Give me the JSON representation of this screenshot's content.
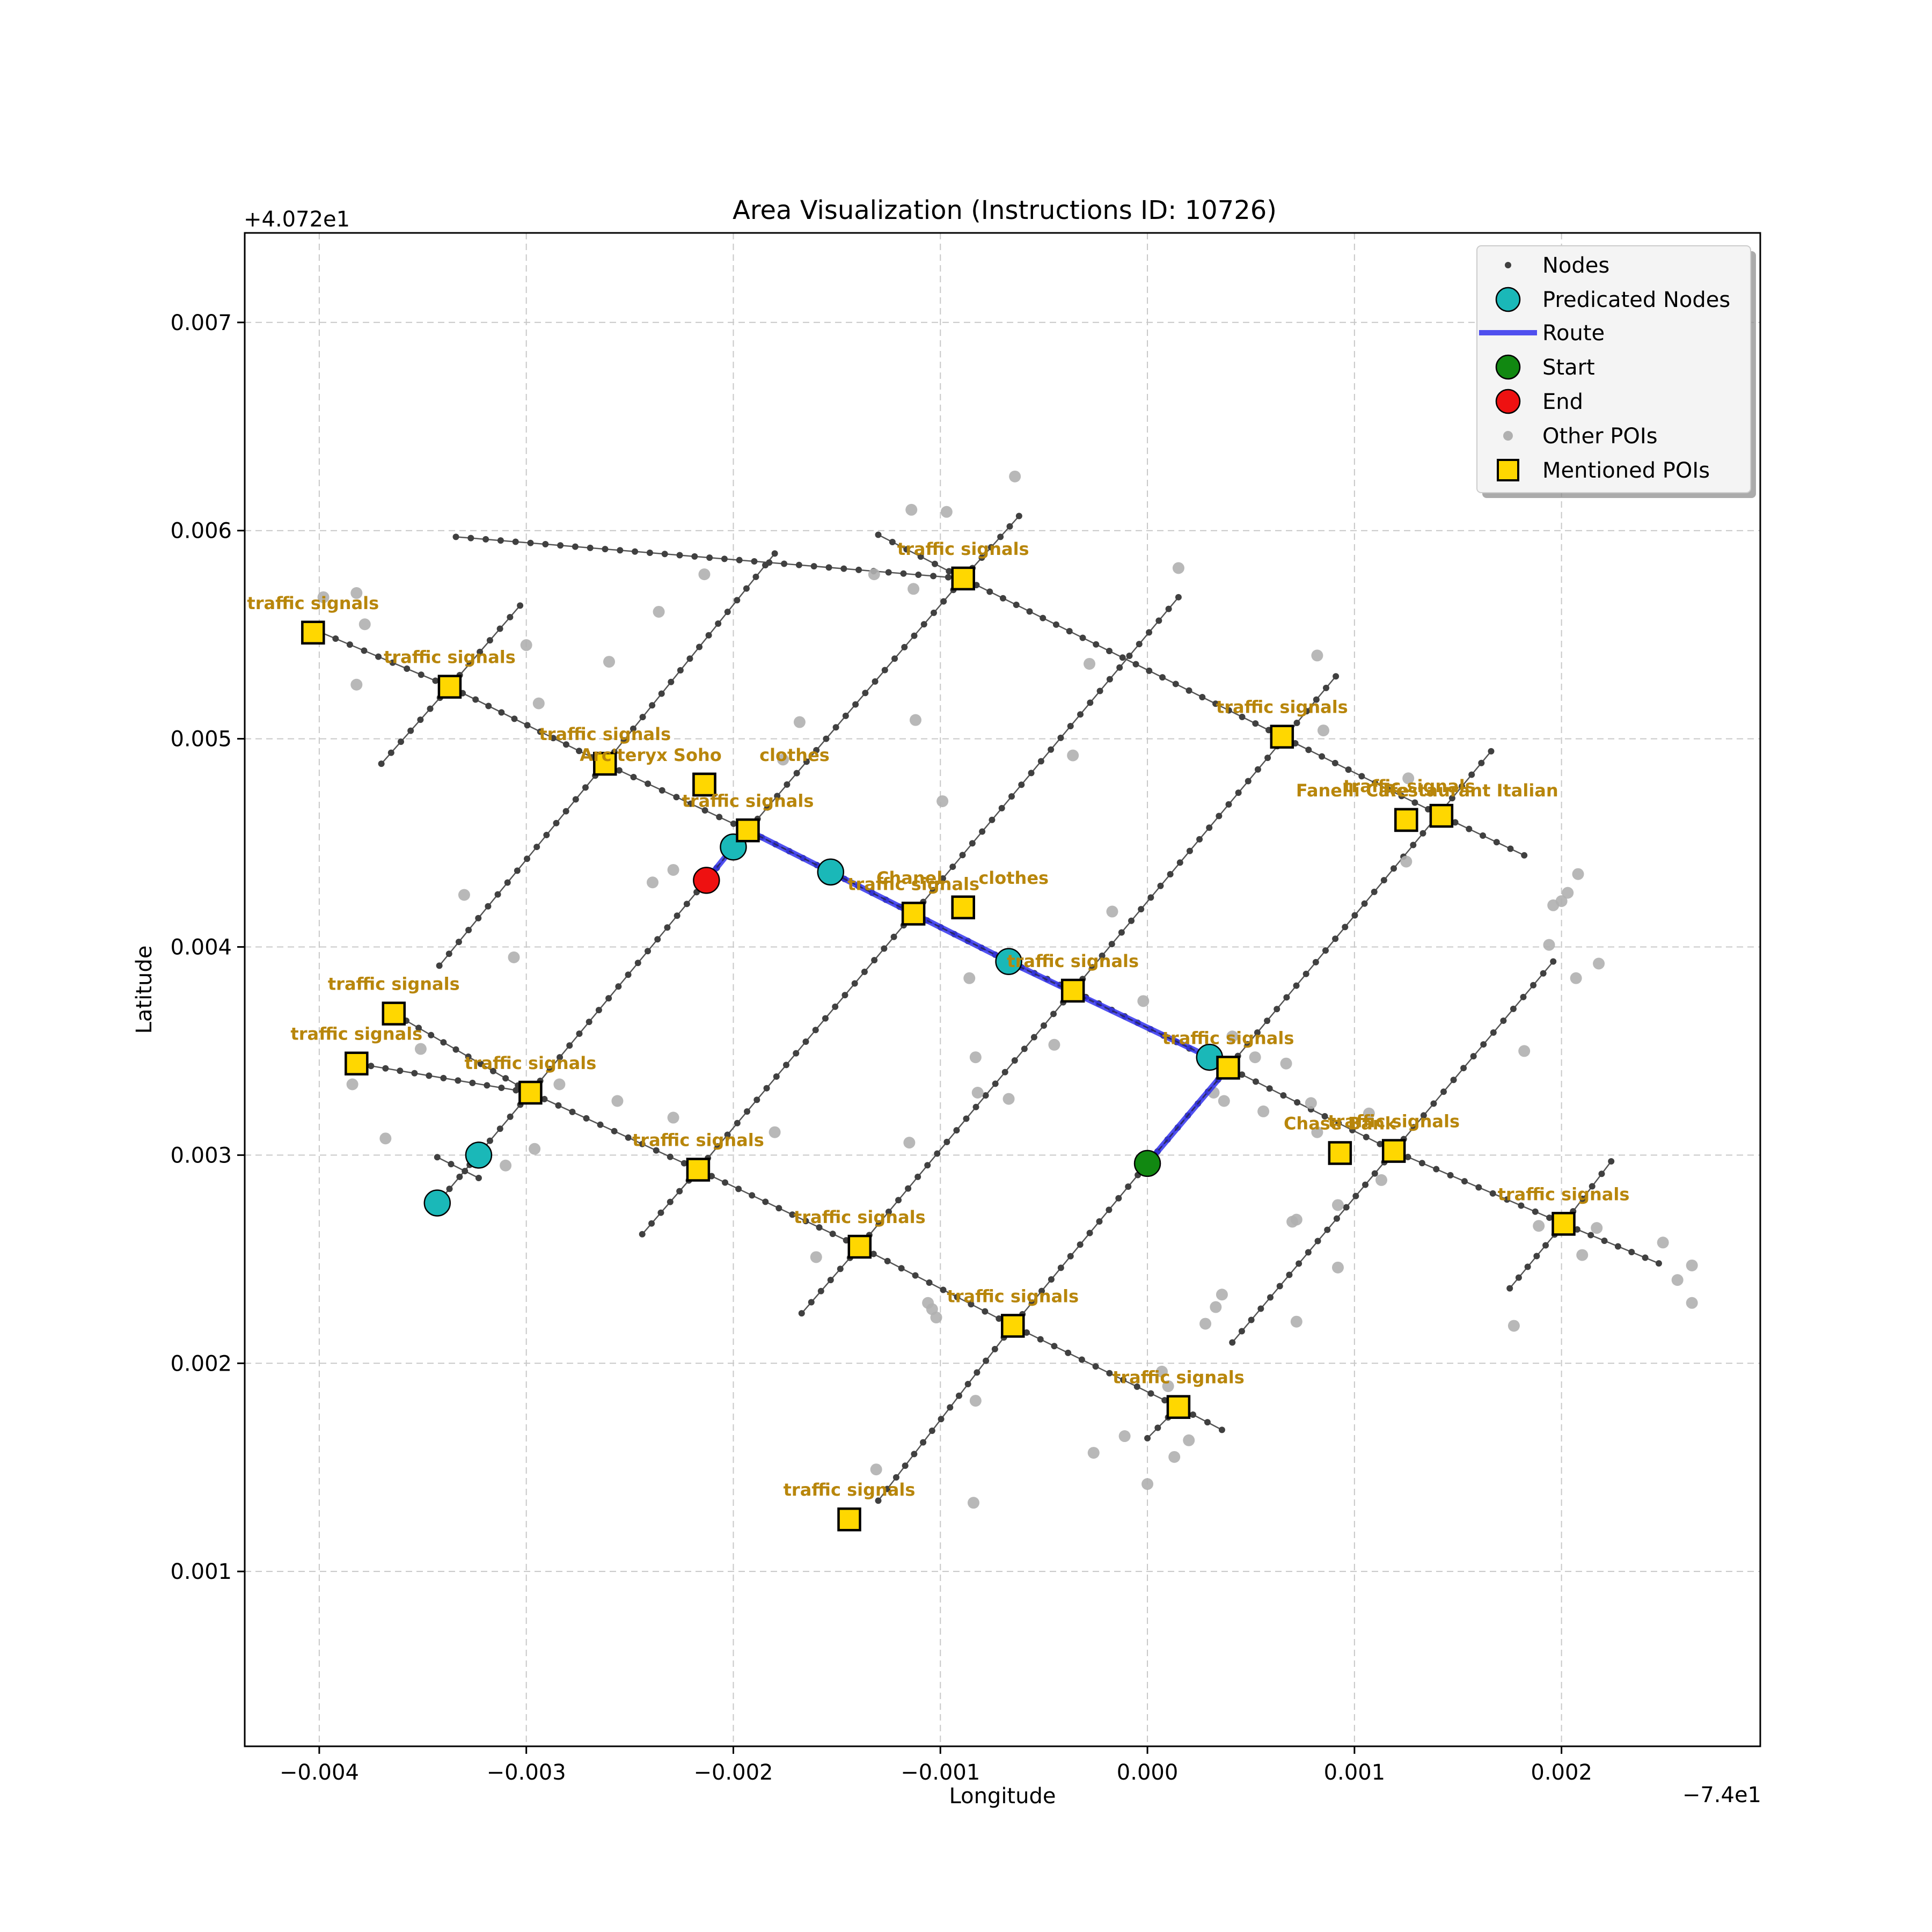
{
  "chart_data": {
    "type": "scatter",
    "title": "Area Visualization (Instructions ID: 10726)",
    "xlabel": "Longitude",
    "ylabel": "Latitude",
    "x_offset_label": "−7.4e1",
    "y_offset_label": "+4.072e1",
    "xlim": [
      -0.00436,
      0.00296
    ],
    "ylim": [
      0.00016,
      0.00743
    ],
    "x_ticks": [
      -0.004,
      -0.003,
      -0.002,
      -0.001,
      0.0,
      0.001,
      0.002
    ],
    "x_tick_labels": [
      "−0.004",
      "−0.003",
      "−0.002",
      "−0.001",
      "0.000",
      "0.001",
      "0.002"
    ],
    "y_ticks": [
      0.001,
      0.002,
      0.003,
      0.004,
      0.005,
      0.006,
      0.007
    ],
    "y_tick_labels": [
      "0.001",
      "0.002",
      "0.003",
      "0.004",
      "0.005",
      "0.006",
      "0.007"
    ],
    "grid": true,
    "legend": {
      "placement": "upper right",
      "entries": [
        "Nodes",
        "Predicated Nodes",
        "Route",
        "Start",
        "End",
        "Other POIs",
        "Mentioned POIs"
      ]
    },
    "colors": {
      "nodes": "#404040",
      "street": "#555555",
      "predicated": "#1ab8b8",
      "route": "#3333ee",
      "start": "#118811",
      "end": "#ee1111",
      "other_poi": "#b0b0b0",
      "mentioned_poi": "#ffd700",
      "poi_label": "#b8860b",
      "grid": "#c8c8c8"
    },
    "streets": [
      [
        [
          -0.00399,
          0.00551
        ],
        [
          -0.00337,
          0.00525
        ],
        [
          -0.00262,
          0.00488
        ],
        [
          -0.00193,
          0.00456
        ],
        [
          -0.00113,
          0.00416
        ],
        [
          -0.00067,
          0.00393
        ],
        [
          -0.00036,
          0.00379
        ],
        [
          0.00039,
          0.00342
        ],
        [
          0.00119,
          0.00302
        ],
        [
          0.00201,
          0.00267
        ],
        [
          0.00247,
          0.00248
        ]
      ],
      [
        [
          -0.00334,
          0.00597
        ],
        [
          -0.00089,
          0.00577
        ],
        [
          0.00065,
          0.00501
        ],
        [
          0.00142,
          0.00463
        ],
        [
          0.00182,
          0.00444
        ]
      ],
      [
        [
          -0.00364,
          0.00368
        ],
        [
          -0.00298,
          0.0033
        ],
        [
          -0.00217,
          0.00293
        ],
        [
          -0.00139,
          0.00256
        ],
        [
          -0.00065,
          0.00218
        ],
        [
          0.00015,
          0.00179
        ],
        [
          0.00036,
          0.00168
        ]
      ],
      [
        [
          -0.00382,
          0.00344
        ],
        [
          -0.00298,
          0.0033
        ]
      ],
      [
        [
          -0.0037,
          0.00488
        ],
        [
          -0.00337,
          0.00525
        ],
        [
          -0.00303,
          0.00564
        ]
      ],
      [
        [
          -0.00342,
          0.00391
        ],
        [
          -0.00262,
          0.00488
        ],
        [
          -0.0018,
          0.00589
        ]
      ],
      [
        [
          -0.00342,
          0.00278
        ],
        [
          -0.00298,
          0.0033
        ],
        [
          -0.00213,
          0.00432
        ],
        [
          -0.00193,
          0.00456
        ],
        [
          -0.00089,
          0.00577
        ],
        [
          -0.00062,
          0.00607
        ]
      ],
      [
        [
          -0.00244,
          0.00262
        ],
        [
          -0.00217,
          0.00293
        ],
        [
          -0.00113,
          0.00416
        ],
        [
          0.00015,
          0.00568
        ]
      ],
      [
        [
          -0.00167,
          0.00224
        ],
        [
          -0.00139,
          0.00256
        ],
        [
          -0.00036,
          0.00379
        ],
        [
          0.00091,
          0.0053
        ]
      ],
      [
        [
          -0.0013,
          0.00134
        ],
        [
          -0.00065,
          0.00218
        ],
        [
          0.0,
          0.00296
        ],
        [
          0.00039,
          0.00342
        ],
        [
          0.00166,
          0.00494
        ]
      ],
      [
        [
          0.0,
          0.00164
        ],
        [
          0.00015,
          0.00179
        ]
      ],
      [
        [
          0.00041,
          0.0021
        ],
        [
          0.00119,
          0.00302
        ],
        [
          0.00196,
          0.00393
        ]
      ],
      [
        [
          0.00175,
          0.00236
        ],
        [
          0.00201,
          0.00267
        ],
        [
          0.00224,
          0.00297
        ]
      ],
      [
        [
          -0.00343,
          0.00299
        ],
        [
          -0.00323,
          0.00289
        ]
      ],
      [
        [
          -0.0013,
          0.00598
        ],
        [
          -0.00089,
          0.00577
        ]
      ]
    ],
    "other_pois": [
      [
        -0.00398,
        0.00568
      ],
      [
        -0.00382,
        0.0057
      ],
      [
        -0.00378,
        0.00555
      ],
      [
        -0.00382,
        0.00526
      ],
      [
        -0.003,
        0.00545
      ],
      [
        -0.00294,
        0.00517
      ],
      [
        -0.00236,
        0.00561
      ],
      [
        -0.0026,
        0.00537
      ],
      [
        -0.00214,
        0.00579
      ],
      [
        -0.00114,
        0.0061
      ],
      [
        -0.00097,
        0.00609
      ],
      [
        -0.00064,
        0.00626
      ],
      [
        -0.00132,
        0.00579
      ],
      [
        -0.00113,
        0.00572
      ],
      [
        -0.00112,
        0.00509
      ],
      [
        -0.00168,
        0.00508
      ],
      [
        -0.00176,
        0.0049
      ],
      [
        -0.00099,
        0.0047
      ],
      [
        -0.00036,
        0.00492
      ],
      [
        -0.00028,
        0.00536
      ],
      [
        0.00015,
        0.00582
      ],
      [
        0.00082,
        0.0054
      ],
      [
        0.00085,
        0.00504
      ],
      [
        0.00126,
        0.00481
      ],
      [
        0.00125,
        0.00441
      ],
      [
        0.00194,
        0.00401
      ],
      [
        0.00196,
        0.0042
      ],
      [
        0.002,
        0.00422
      ],
      [
        0.00203,
        0.00426
      ],
      [
        0.00208,
        0.00435
      ],
      [
        0.00207,
        0.00385
      ],
      [
        0.00218,
        0.00392
      ],
      [
        0.00182,
        0.0035
      ],
      [
        -0.00229,
        0.00437
      ],
      [
        -0.00239,
        0.00431
      ],
      [
        -0.0033,
        0.00425
      ],
      [
        -0.00306,
        0.00395
      ],
      [
        -0.00086,
        0.00385
      ],
      [
        -0.00083,
        0.00347
      ],
      [
        -0.00082,
        0.0033
      ],
      [
        -0.00067,
        0.00327
      ],
      [
        -0.00045,
        0.00353
      ],
      [
        -0.00017,
        0.00417
      ],
      [
        -2e-05,
        0.00374
      ],
      [
        0.00032,
        0.0033
      ],
      [
        0.00037,
        0.00326
      ],
      [
        0.00041,
        0.00357
      ],
      [
        0.00052,
        0.00347
      ],
      [
        0.00067,
        0.00344
      ],
      [
        0.00056,
        0.00321
      ],
      [
        0.00079,
        0.00325
      ],
      [
        0.00082,
        0.00311
      ],
      [
        0.00107,
        0.0032
      ],
      [
        0.00113,
        0.00288
      ],
      [
        0.00092,
        0.00276
      ],
      [
        0.00092,
        0.00246
      ],
      [
        0.0007,
        0.00268
      ],
      [
        0.00072,
        0.00269
      ],
      [
        0.00072,
        0.0022
      ],
      [
        -0.00351,
        0.00351
      ],
      [
        -0.00284,
        0.00334
      ],
      [
        -0.00256,
        0.00326
      ],
      [
        -0.00229,
        0.00318
      ],
      [
        -0.0018,
        0.00311
      ],
      [
        -0.00384,
        0.00334
      ],
      [
        -0.00368,
        0.00308
      ],
      [
        -0.0031,
        0.00295
      ],
      [
        -0.00296,
        0.00303
      ],
      [
        -0.00115,
        0.00306
      ],
      [
        -0.00106,
        0.00229
      ],
      [
        -0.00104,
        0.00226
      ],
      [
        -0.00102,
        0.00222
      ],
      [
        -0.0016,
        0.00251
      ],
      [
        -0.00131,
        0.00149
      ],
      [
        -0.00083,
        0.00182
      ],
      [
        -0.00084,
        0.00133
      ],
      [
        -0.00026,
        0.00157
      ],
      [
        -0.00011,
        0.00165
      ],
      [
        7e-05,
        0.00196
      ],
      [
        0.0001,
        0.00189
      ],
      [
        0.00013,
        0.00155
      ],
      [
        0.0002,
        0.00163
      ],
      [
        0.0,
        0.00142
      ],
      [
        0.00028,
        0.00219
      ],
      [
        0.00033,
        0.00227
      ],
      [
        0.00036,
        0.00233
      ],
      [
        0.00177,
        0.00218
      ],
      [
        0.00189,
        0.00266
      ],
      [
        0.0021,
        0.00252
      ],
      [
        0.00217,
        0.00265
      ],
      [
        0.00249,
        0.00258
      ],
      [
        0.00256,
        0.0024
      ],
      [
        0.00263,
        0.00229
      ],
      [
        0.00263,
        0.00247
      ]
    ],
    "mentioned_pois": [
      {
        "name": "traffic signals",
        "x": -0.00403,
        "y": 0.00551,
        "label_dx": 0,
        "label_dy": 0
      },
      {
        "name": "traffic signals",
        "x": -0.00337,
        "y": 0.00525,
        "label_dx": 0,
        "label_dy": 0
      },
      {
        "name": "traffic signals",
        "x": -0.00262,
        "y": 0.00488,
        "label_dx": 0,
        "label_dy": 0
      },
      {
        "name": "Arc'teryx Soho",
        "x": -0.00214,
        "y": 0.00478,
        "label_dx": -100,
        "label_dy": 0
      },
      {
        "name": "clothes",
        "x": -0.00214,
        "y": 0.00478,
        "label_dx": 168,
        "label_dy": 0
      },
      {
        "name": "traffic signals",
        "x": -0.00193,
        "y": 0.00456,
        "label_dx": 0,
        "label_dy": 0
      },
      {
        "name": "traffic signals",
        "x": -0.00089,
        "y": 0.00577,
        "label_dx": 0,
        "label_dy": 0
      },
      {
        "name": "traffic signals",
        "x": 0.00065,
        "y": 0.00501,
        "label_dx": 0,
        "label_dy": 0
      },
      {
        "name": "Fanelli Cafe",
        "x": 0.00125,
        "y": 0.00461,
        "label_dx": -100,
        "label_dy": 0
      },
      {
        "name": "Restaurant Italian",
        "x": 0.00125,
        "y": 0.00461,
        "label_dx": 120,
        "label_dy": 0
      },
      {
        "name": "traffic signals",
        "x": 0.00142,
        "y": 0.00463,
        "label_dx": -60,
        "label_dy": 0
      },
      {
        "name": "Chanel",
        "x": -0.00089,
        "y": 0.00419,
        "label_dx": -100,
        "label_dy": 0
      },
      {
        "name": "clothes",
        "x": -0.00089,
        "y": 0.00419,
        "label_dx": 94,
        "label_dy": 0
      },
      {
        "name": "traffic signals",
        "x": -0.00113,
        "y": 0.00416,
        "label_dx": 0,
        "label_dy": 0
      },
      {
        "name": "traffic signals",
        "x": -0.00036,
        "y": 0.00379,
        "label_dx": 0,
        "label_dy": 0
      },
      {
        "name": "traffic signals",
        "x": 0.00039,
        "y": 0.00342,
        "label_dx": 0,
        "label_dy": 0
      },
      {
        "name": "traffic signals",
        "x": -0.00364,
        "y": 0.00368,
        "label_dx": 0,
        "label_dy": 0
      },
      {
        "name": "traffic signals",
        "x": -0.00382,
        "y": 0.00344,
        "label_dx": 0,
        "label_dy": 0
      },
      {
        "name": "traffic signals",
        "x": -0.00298,
        "y": 0.0033,
        "label_dx": 0,
        "label_dy": 0
      },
      {
        "name": "traffic signals",
        "x": -0.00217,
        "y": 0.00293,
        "label_dx": 0,
        "label_dy": 0
      },
      {
        "name": "Chase Bank",
        "x": 0.00093,
        "y": 0.00301,
        "label_dx": 0,
        "label_dy": 0
      },
      {
        "name": "traffic signals",
        "x": 0.00119,
        "y": 0.00302,
        "label_dx": 0,
        "label_dy": 0
      },
      {
        "name": "traffic signals",
        "x": 0.00201,
        "y": 0.00267,
        "label_dx": 0,
        "label_dy": 0
      },
      {
        "name": "traffic signals",
        "x": -0.00139,
        "y": 0.00256,
        "label_dx": 0,
        "label_dy": 0
      },
      {
        "name": "traffic signals",
        "x": -0.00065,
        "y": 0.00218,
        "label_dx": 0,
        "label_dy": 0
      },
      {
        "name": "traffic signals",
        "x": 0.00015,
        "y": 0.00179,
        "label_dx": 0,
        "label_dy": 0
      },
      {
        "name": "traffic signals",
        "x": -0.00144,
        "y": 0.00125,
        "label_dx": 0,
        "label_dy": 0
      }
    ],
    "route": [
      [
        0.0,
        0.00296
      ],
      [
        0.00039,
        0.00342
      ],
      [
        0.0003,
        0.00347
      ],
      [
        -0.00067,
        0.00393
      ],
      [
        -0.00153,
        0.00436
      ],
      [
        -0.00193,
        0.00456
      ],
      [
        -0.002,
        0.00448
      ],
      [
        -0.00213,
        0.00432
      ]
    ],
    "predicated_nodes": [
      [
        -0.002,
        0.00448
      ],
      [
        -0.00153,
        0.00436
      ],
      [
        -0.00067,
        0.00393
      ],
      [
        0.0003,
        0.00347
      ],
      [
        -0.00323,
        0.003
      ],
      [
        -0.00343,
        0.00277
      ]
    ],
    "start": [
      0.0,
      0.00296
    ],
    "end": [
      -0.00213,
      0.00432
    ]
  }
}
